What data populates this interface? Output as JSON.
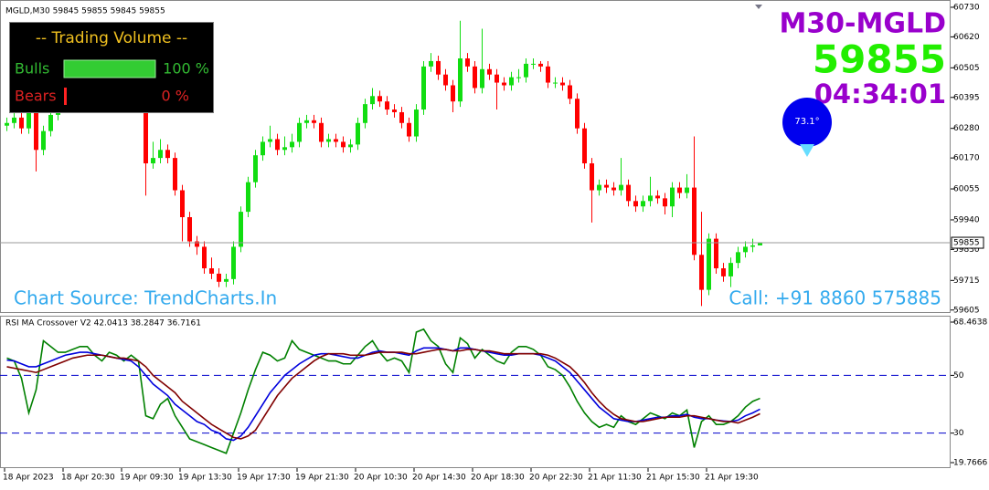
{
  "chart_data": [
    {
      "type": "candlestick",
      "title": "MGLD,M30  59845 59855 59845 59855",
      "open": [
        60290,
        60300,
        60320,
        60280,
        60350,
        60200,
        60270,
        60330,
        60380,
        60360,
        60400,
        60380,
        60420,
        60400,
        60440,
        60420,
        60400,
        60430,
        60410,
        60430,
        60150,
        60170,
        60200,
        60170,
        60050,
        59950,
        59860,
        59840,
        59760,
        59740,
        59710,
        59720,
        59840,
        59970,
        60080,
        60180,
        60230,
        60240,
        60200,
        60210,
        60230,
        60300,
        60310,
        60300,
        60230,
        60240,
        60230,
        60210,
        60220,
        60300,
        60370,
        60400,
        60380,
        60350,
        60340,
        60300,
        60250,
        60350,
        60510,
        60530,
        60480,
        60440,
        60380,
        60540,
        60510,
        60430,
        60500,
        60480,
        60450,
        60440,
        60470,
        60470,
        60520,
        60520,
        60510,
        60450,
        60450,
        60440,
        60390,
        60280,
        60150,
        60050,
        60070,
        60060,
        60050,
        60070,
        60010,
        59990,
        60010,
        60030,
        60020,
        59990,
        60060,
        60040,
        60060,
        59810,
        59680,
        59870,
        59760,
        59730,
        59780,
        59820,
        59840,
        59845
      ],
      "high": [
        60320,
        60340,
        60340,
        60370,
        60370,
        60290,
        60350,
        60400,
        60400,
        60420,
        60420,
        60440,
        60440,
        60460,
        60460,
        60440,
        60450,
        60450,
        60450,
        60450,
        60230,
        60240,
        60220,
        60190,
        60070,
        59970,
        59880,
        59860,
        59800,
        59760,
        59740,
        59860,
        59990,
        60100,
        60200,
        60250,
        60290,
        60260,
        60250,
        60260,
        60320,
        60330,
        60330,
        60320,
        60260,
        60260,
        60250,
        60240,
        60320,
        60390,
        60430,
        60420,
        60400,
        60370,
        60360,
        60320,
        60370,
        60530,
        60560,
        60550,
        60500,
        60460,
        60680,
        60560,
        60530,
        60650,
        60520,
        60500,
        60470,
        60490,
        60500,
        60540,
        60540,
        60530,
        60530,
        60470,
        60470,
        60460,
        60410,
        60300,
        60170,
        60090,
        60090,
        60080,
        60170,
        60090,
        60030,
        60030,
        60100,
        60050,
        60040,
        60080,
        60080,
        60110,
        60250,
        59970,
        59890,
        59890,
        59780,
        59800,
        59840,
        59860,
        59870,
        59855
      ],
      "low": [
        60270,
        60280,
        60260,
        60260,
        60120,
        60180,
        60250,
        60310,
        60340,
        60340,
        60360,
        60360,
        60380,
        60380,
        60400,
        60380,
        60380,
        60390,
        60390,
        60030,
        60130,
        60150,
        60150,
        60030,
        59860,
        59840,
        59810,
        59740,
        59720,
        59690,
        59690,
        59700,
        59820,
        59950,
        60060,
        60160,
        60210,
        60180,
        60180,
        60190,
        60210,
        60280,
        60280,
        60210,
        60210,
        60210,
        60190,
        60190,
        60200,
        60280,
        60350,
        60360,
        60330,
        60320,
        60280,
        60230,
        60230,
        60330,
        60490,
        60460,
        60420,
        60340,
        60360,
        60490,
        60410,
        60410,
        60460,
        60350,
        60420,
        60420,
        60450,
        60450,
        60500,
        60490,
        60430,
        60430,
        60420,
        60370,
        60260,
        60130,
        59930,
        60030,
        60040,
        60030,
        60030,
        59990,
        59970,
        59970,
        59990,
        60000,
        59960,
        59950,
        60020,
        60020,
        59790,
        59620,
        59660,
        59740,
        59710,
        59690,
        59760,
        59800,
        59820,
        59845
      ],
      "close": [
        60300,
        60320,
        60280,
        60350,
        60200,
        60270,
        60330,
        60380,
        60360,
        60400,
        60380,
        60420,
        60400,
        60440,
        60420,
        60400,
        60430,
        60410,
        60430,
        60150,
        60170,
        60200,
        60170,
        60050,
        59950,
        59860,
        59840,
        59760,
        59740,
        59710,
        59720,
        59840,
        59970,
        60080,
        60180,
        60230,
        60240,
        60200,
        60210,
        60230,
        60300,
        60310,
        60300,
        60230,
        60240,
        60230,
        60210,
        60220,
        60300,
        60370,
        60400,
        60380,
        60350,
        60340,
        60300,
        60250,
        60350,
        60510,
        60530,
        60480,
        60440,
        60380,
        60540,
        60510,
        60430,
        60500,
        60480,
        60450,
        60440,
        60470,
        60470,
        60520,
        60520,
        60510,
        60450,
        60450,
        60440,
        60390,
        60280,
        60150,
        60050,
        60070,
        60060,
        60050,
        60070,
        60010,
        59990,
        60010,
        60030,
        60020,
        59990,
        60060,
        60040,
        60060,
        59810,
        59680,
        59870,
        59760,
        59730,
        59780,
        59820,
        59840,
        59845,
        59855
      ],
      "up_color": "#11dd11",
      "down_color": "#ff0000",
      "ylim": [
        59594,
        60757
      ],
      "yticks": [
        60730,
        60620,
        60505,
        60395,
        60280,
        60170,
        60055,
        59940,
        59830,
        59715,
        59605
      ],
      "last_price": 59855
    },
    {
      "type": "line",
      "title": "RSI MA Crossover V2 42.0413 38.2847 36.7161",
      "categories": [
        "18 Apr 2023",
        null,
        null,
        null,
        null,
        null,
        null,
        null,
        "18 Apr 20:30",
        null,
        null,
        null,
        null,
        null,
        null,
        null,
        "19 Apr 09:30",
        null,
        null,
        null,
        null,
        null,
        null,
        null,
        "19 Apr 13:30",
        null,
        null,
        null,
        null,
        null,
        null,
        null,
        "19 Apr 17:30",
        null,
        null,
        null,
        null,
        null,
        null,
        null,
        "19 Apr 21:30",
        null,
        null,
        null,
        null,
        null,
        null,
        null,
        "20 Apr 10:30",
        null,
        null,
        null,
        null,
        null,
        null,
        null,
        "20 Apr 14:30",
        null,
        null,
        null,
        null,
        null,
        null,
        null,
        "20 Apr 18:30",
        null,
        null,
        null,
        null,
        null,
        null,
        null,
        "20 Apr 22:30",
        null,
        null,
        null,
        null,
        null,
        null,
        null,
        "21 Apr 11:30",
        null,
        null,
        null,
        null,
        null,
        null,
        null,
        "21 Apr 15:30",
        null,
        null,
        null,
        null,
        null,
        null,
        null,
        "21 Apr 19:30",
        null,
        null,
        null,
        null,
        null,
        null,
        null
      ],
      "series": [
        {
          "color": "#008000",
          "values": [
            56,
            55,
            49,
            37,
            45,
            62,
            60,
            58,
            58,
            59,
            60,
            60,
            57,
            55,
            58,
            57,
            55,
            57,
            55,
            36,
            35,
            40,
            42,
            36,
            32,
            28,
            27,
            26,
            25,
            24,
            23,
            30,
            37,
            45,
            52,
            58,
            57,
            55,
            56,
            62,
            59,
            58,
            57,
            56,
            55,
            55,
            54,
            54,
            57,
            60,
            62,
            58,
            55,
            56,
            55,
            51,
            65,
            66,
            62,
            60,
            54,
            51,
            63,
            61,
            56,
            59,
            57,
            55,
            54,
            58,
            60,
            60,
            59,
            57,
            53,
            52,
            50,
            46,
            41,
            37,
            34,
            32,
            33,
            32,
            36,
            34,
            33,
            35,
            37,
            36,
            35,
            37,
            36,
            38,
            25,
            34,
            36,
            33,
            33,
            34,
            36,
            39,
            41,
            42.0413
          ]
        },
        {
          "color": "#0000dd",
          "values": [
            55.3,
            55,
            54,
            53,
            53,
            54,
            55,
            56,
            57,
            57.5,
            58,
            58,
            57.5,
            57,
            56.5,
            56,
            55.5,
            55,
            53,
            50,
            47,
            45,
            43,
            40,
            38,
            36,
            34,
            33,
            31,
            30,
            28,
            27.5,
            29,
            32,
            36,
            40,
            44,
            47,
            50,
            52,
            54,
            55.5,
            57,
            57.5,
            57.5,
            57,
            56.5,
            56,
            56,
            57,
            58,
            58.5,
            58,
            58,
            57.5,
            57,
            58.5,
            59.5,
            59.5,
            59.5,
            59,
            58.5,
            59.5,
            59.5,
            59,
            58.5,
            58,
            57.5,
            57,
            57,
            57.5,
            57.5,
            57.5,
            57,
            56,
            55,
            53,
            51,
            48,
            45,
            42,
            39,
            37,
            35,
            34.5,
            34,
            34,
            34.5,
            35,
            35.5,
            35.5,
            36,
            36,
            36.5,
            35.5,
            35,
            35,
            34.5,
            34.2,
            34,
            34.5,
            36,
            37,
            38.2847
          ]
        },
        {
          "color": "#800000",
          "values": [
            53,
            52.5,
            52,
            51.5,
            51,
            52,
            53,
            54,
            55,
            56,
            56.5,
            57,
            57,
            57,
            56.5,
            56,
            56,
            55.5,
            55,
            53,
            50,
            48,
            46,
            44,
            41,
            39,
            37,
            35,
            33,
            31.5,
            30,
            28.5,
            28,
            29,
            31,
            35,
            39,
            43,
            46,
            49,
            51,
            53,
            55,
            56.5,
            57.5,
            57.5,
            57.5,
            57,
            57,
            57,
            57.5,
            58,
            58,
            58,
            58,
            57.5,
            57.5,
            58,
            58.5,
            59,
            59,
            58.5,
            58.5,
            59,
            59,
            58.5,
            58.5,
            58,
            57.5,
            57.5,
            57.5,
            57.5,
            57.5,
            57.5,
            57,
            56,
            54.5,
            53,
            50.5,
            47.5,
            44,
            41,
            38.5,
            36.5,
            35,
            34.5,
            34,
            34,
            34.5,
            35,
            35.5,
            35.5,
            35.5,
            36,
            36,
            35.5,
            35,
            34.5,
            34,
            34,
            33.5,
            34.5,
            35.5,
            36.7161
          ]
        }
      ],
      "ylim": [
        19.7666,
        68.4638
      ],
      "yticks": [
        68.4638,
        50,
        30,
        19.7666
      ],
      "levels": [
        50,
        30
      ],
      "level_color": "#0000cc"
    }
  ],
  "volume_panel": {
    "title": "-- Trading Volume --",
    "rows": [
      {
        "label": "Bulls",
        "value": 100,
        "value_label": "100 %",
        "color": "#33cc33"
      },
      {
        "label": "Bears",
        "value": 0,
        "value_label": "0 %",
        "color": "#ff2222"
      }
    ]
  },
  "overlay": {
    "title": "M30-MGLD",
    "price": "59855",
    "timer": "04:34:01",
    "angle": "73.1°",
    "source": "Chart Source: TrendCharts.In",
    "contact": "Call: +91 8860 575885"
  }
}
